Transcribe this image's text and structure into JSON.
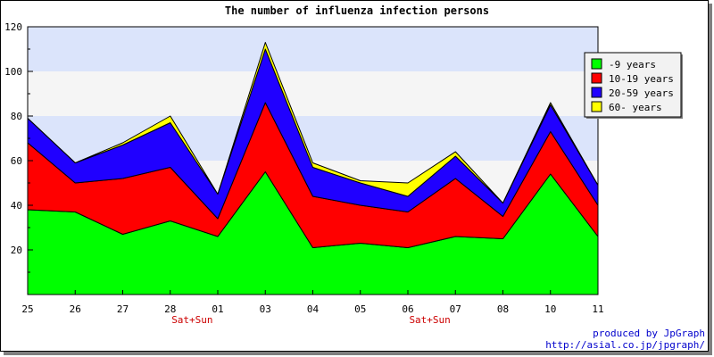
{
  "chart_data": {
    "type": "area",
    "stacked": true,
    "title": "The number of influenza infection persons",
    "categories": [
      "25",
      "26",
      "27",
      "28",
      "01",
      "03",
      "04",
      "05",
      "06",
      "07",
      "08",
      "10",
      "11"
    ],
    "weekend_label": "Sat+Sun",
    "weekend_after_categories": [
      "28",
      "06"
    ],
    "ylim": [
      0,
      120
    ],
    "yticks": [
      20,
      40,
      60,
      80,
      100,
      120
    ],
    "background_bands": [
      "#dbe4fb",
      "#f5f5f5"
    ],
    "series": [
      {
        "name": "-9 years",
        "color": "#00ff00",
        "values": [
          38,
          37,
          27,
          33,
          26,
          55,
          21,
          23,
          21,
          26,
          25,
          54,
          26
        ]
      },
      {
        "name": "10-19 years",
        "color": "#ff0000",
        "values": [
          30,
          13,
          25,
          24,
          8,
          31,
          23,
          17,
          16,
          26,
          10,
          19,
          14
        ]
      },
      {
        "name": "20-59 years",
        "color": "#2000ff",
        "values": [
          11,
          9,
          15,
          20,
          11,
          24,
          13,
          10,
          7,
          10,
          6,
          12,
          9
        ]
      },
      {
        "name": "60- years",
        "color": "#ffff00",
        "values": [
          0,
          0,
          1,
          3,
          0,
          3,
          2,
          1,
          6,
          2,
          0,
          1,
          0
        ]
      }
    ],
    "legend_position": "right"
  },
  "credits": {
    "line1": "produced by JpGraph",
    "line2": "http://asial.co.jp/jpgraph/"
  }
}
